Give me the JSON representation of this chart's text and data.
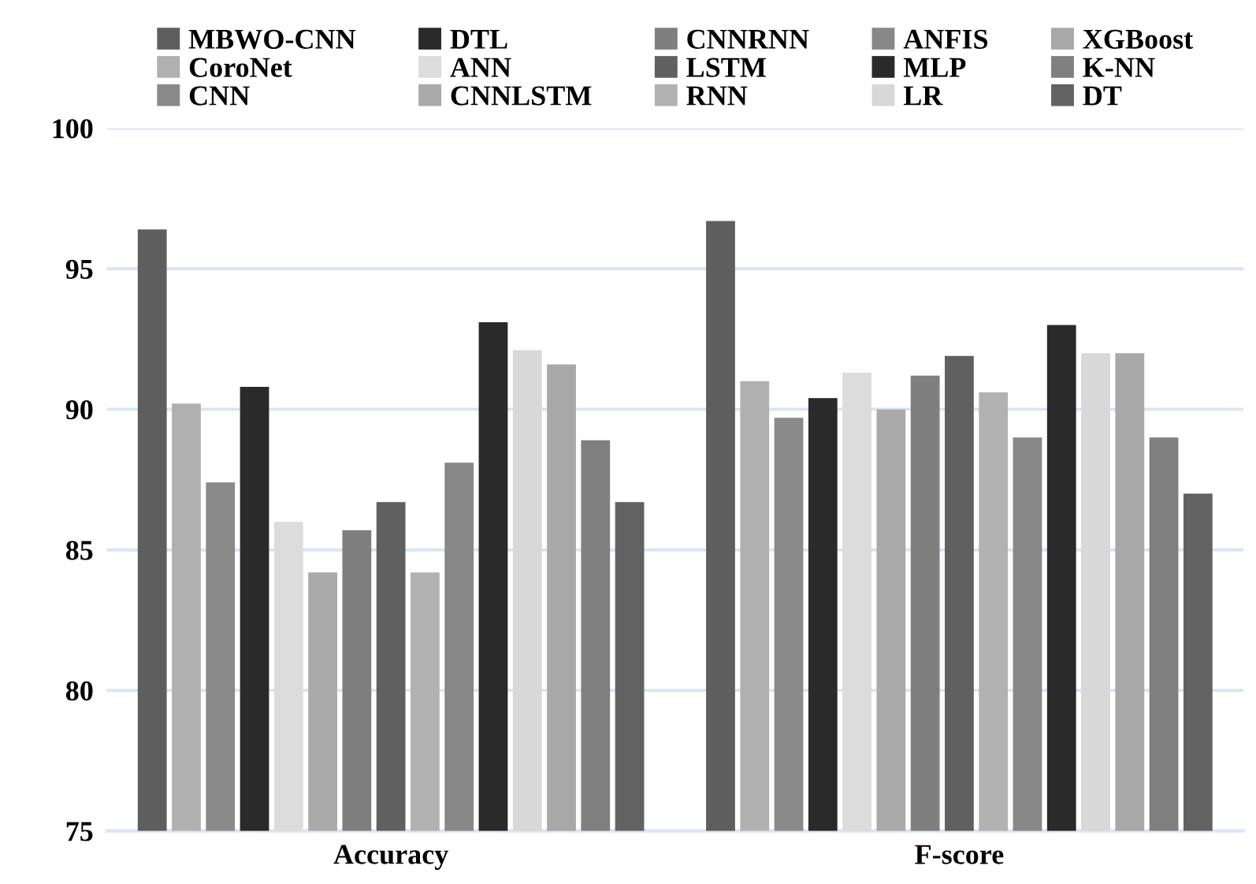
{
  "chart_data": {
    "type": "bar",
    "categories": [
      "Accuracy",
      "F-score"
    ],
    "series": [
      {
        "name": "MBWO-CNN",
        "color": "#5e5e5e",
        "values": [
          96.4,
          96.7
        ]
      },
      {
        "name": "CoroNet",
        "color": "#b0b0b0",
        "values": [
          90.2,
          91.0
        ]
      },
      {
        "name": "CNN",
        "color": "#8a8a8a",
        "values": [
          87.4,
          89.7
        ]
      },
      {
        "name": "DTL",
        "color": "#2a2a2a",
        "values": [
          90.8,
          90.4
        ]
      },
      {
        "name": "ANN",
        "color": "#dcdcdc",
        "values": [
          86.0,
          91.3
        ]
      },
      {
        "name": "CNNLSTM",
        "color": "#aaaaaa",
        "values": [
          84.2,
          90.0
        ]
      },
      {
        "name": "CNNRNN",
        "color": "#7f7f7f",
        "values": [
          85.7,
          91.2
        ]
      },
      {
        "name": "LSTM",
        "color": "#606060",
        "values": [
          86.7,
          91.9
        ]
      },
      {
        "name": "RNN",
        "color": "#b2b2b2",
        "values": [
          84.2,
          90.6
        ]
      },
      {
        "name": "ANFIS",
        "color": "#888888",
        "values": [
          88.1,
          89.0
        ]
      },
      {
        "name": "MLP",
        "color": "#2a2a2a",
        "values": [
          93.1,
          93.0
        ]
      },
      {
        "name": "LR",
        "color": "#d8d8d8",
        "values": [
          92.1,
          92.0
        ]
      },
      {
        "name": "XGBoost",
        "color": "#a8a8a8",
        "values": [
          91.6,
          92.0
        ]
      },
      {
        "name": "K-NN",
        "color": "#808080",
        "values": [
          88.9,
          89.0
        ]
      },
      {
        "name": "DT",
        "color": "#626262",
        "values": [
          86.7,
          87.0
        ]
      }
    ],
    "ylim": [
      75,
      100
    ],
    "yticks": [
      75,
      80,
      85,
      90,
      95,
      100
    ],
    "grid": "y",
    "legend": "top"
  }
}
